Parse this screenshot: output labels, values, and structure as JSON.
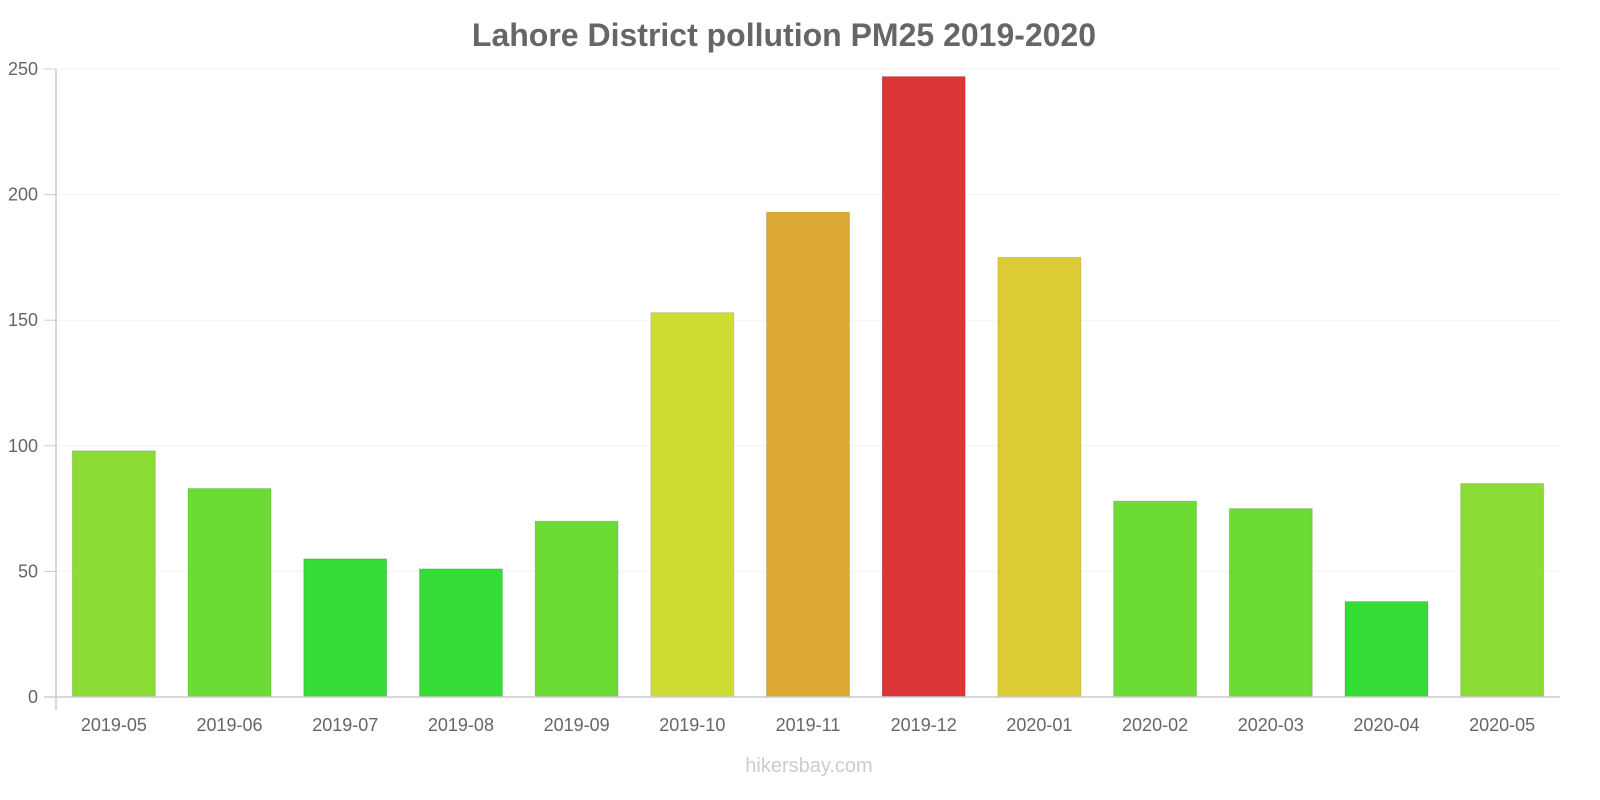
{
  "chart_data": {
    "type": "bar",
    "title": "Lahore District pollution PM25 2019-2020",
    "xlabel": "",
    "ylabel": "",
    "ylim": [
      0,
      250
    ],
    "yticks": [
      0,
      50,
      100,
      150,
      200,
      250
    ],
    "grid": true,
    "categories": [
      "2019-05",
      "2019-06",
      "2019-07",
      "2019-08",
      "2019-09",
      "2019-10",
      "2019-11",
      "2019-12",
      "2020-01",
      "2020-02",
      "2020-03",
      "2020-04",
      "2020-05"
    ],
    "values": [
      98,
      83,
      55,
      51,
      70,
      153,
      193,
      247,
      175,
      78,
      75,
      38,
      85
    ],
    "colors": [
      "#8bdc35",
      "#6cdc35",
      "#34dc35",
      "#34dc35",
      "#6cdc35",
      "#cfdc33",
      "#dba834",
      "#db3535",
      "#dccb34",
      "#6cdc35",
      "#6cdc35",
      "#34dc35",
      "#8bdc35"
    ]
  },
  "watermark": "hikersbay.com"
}
